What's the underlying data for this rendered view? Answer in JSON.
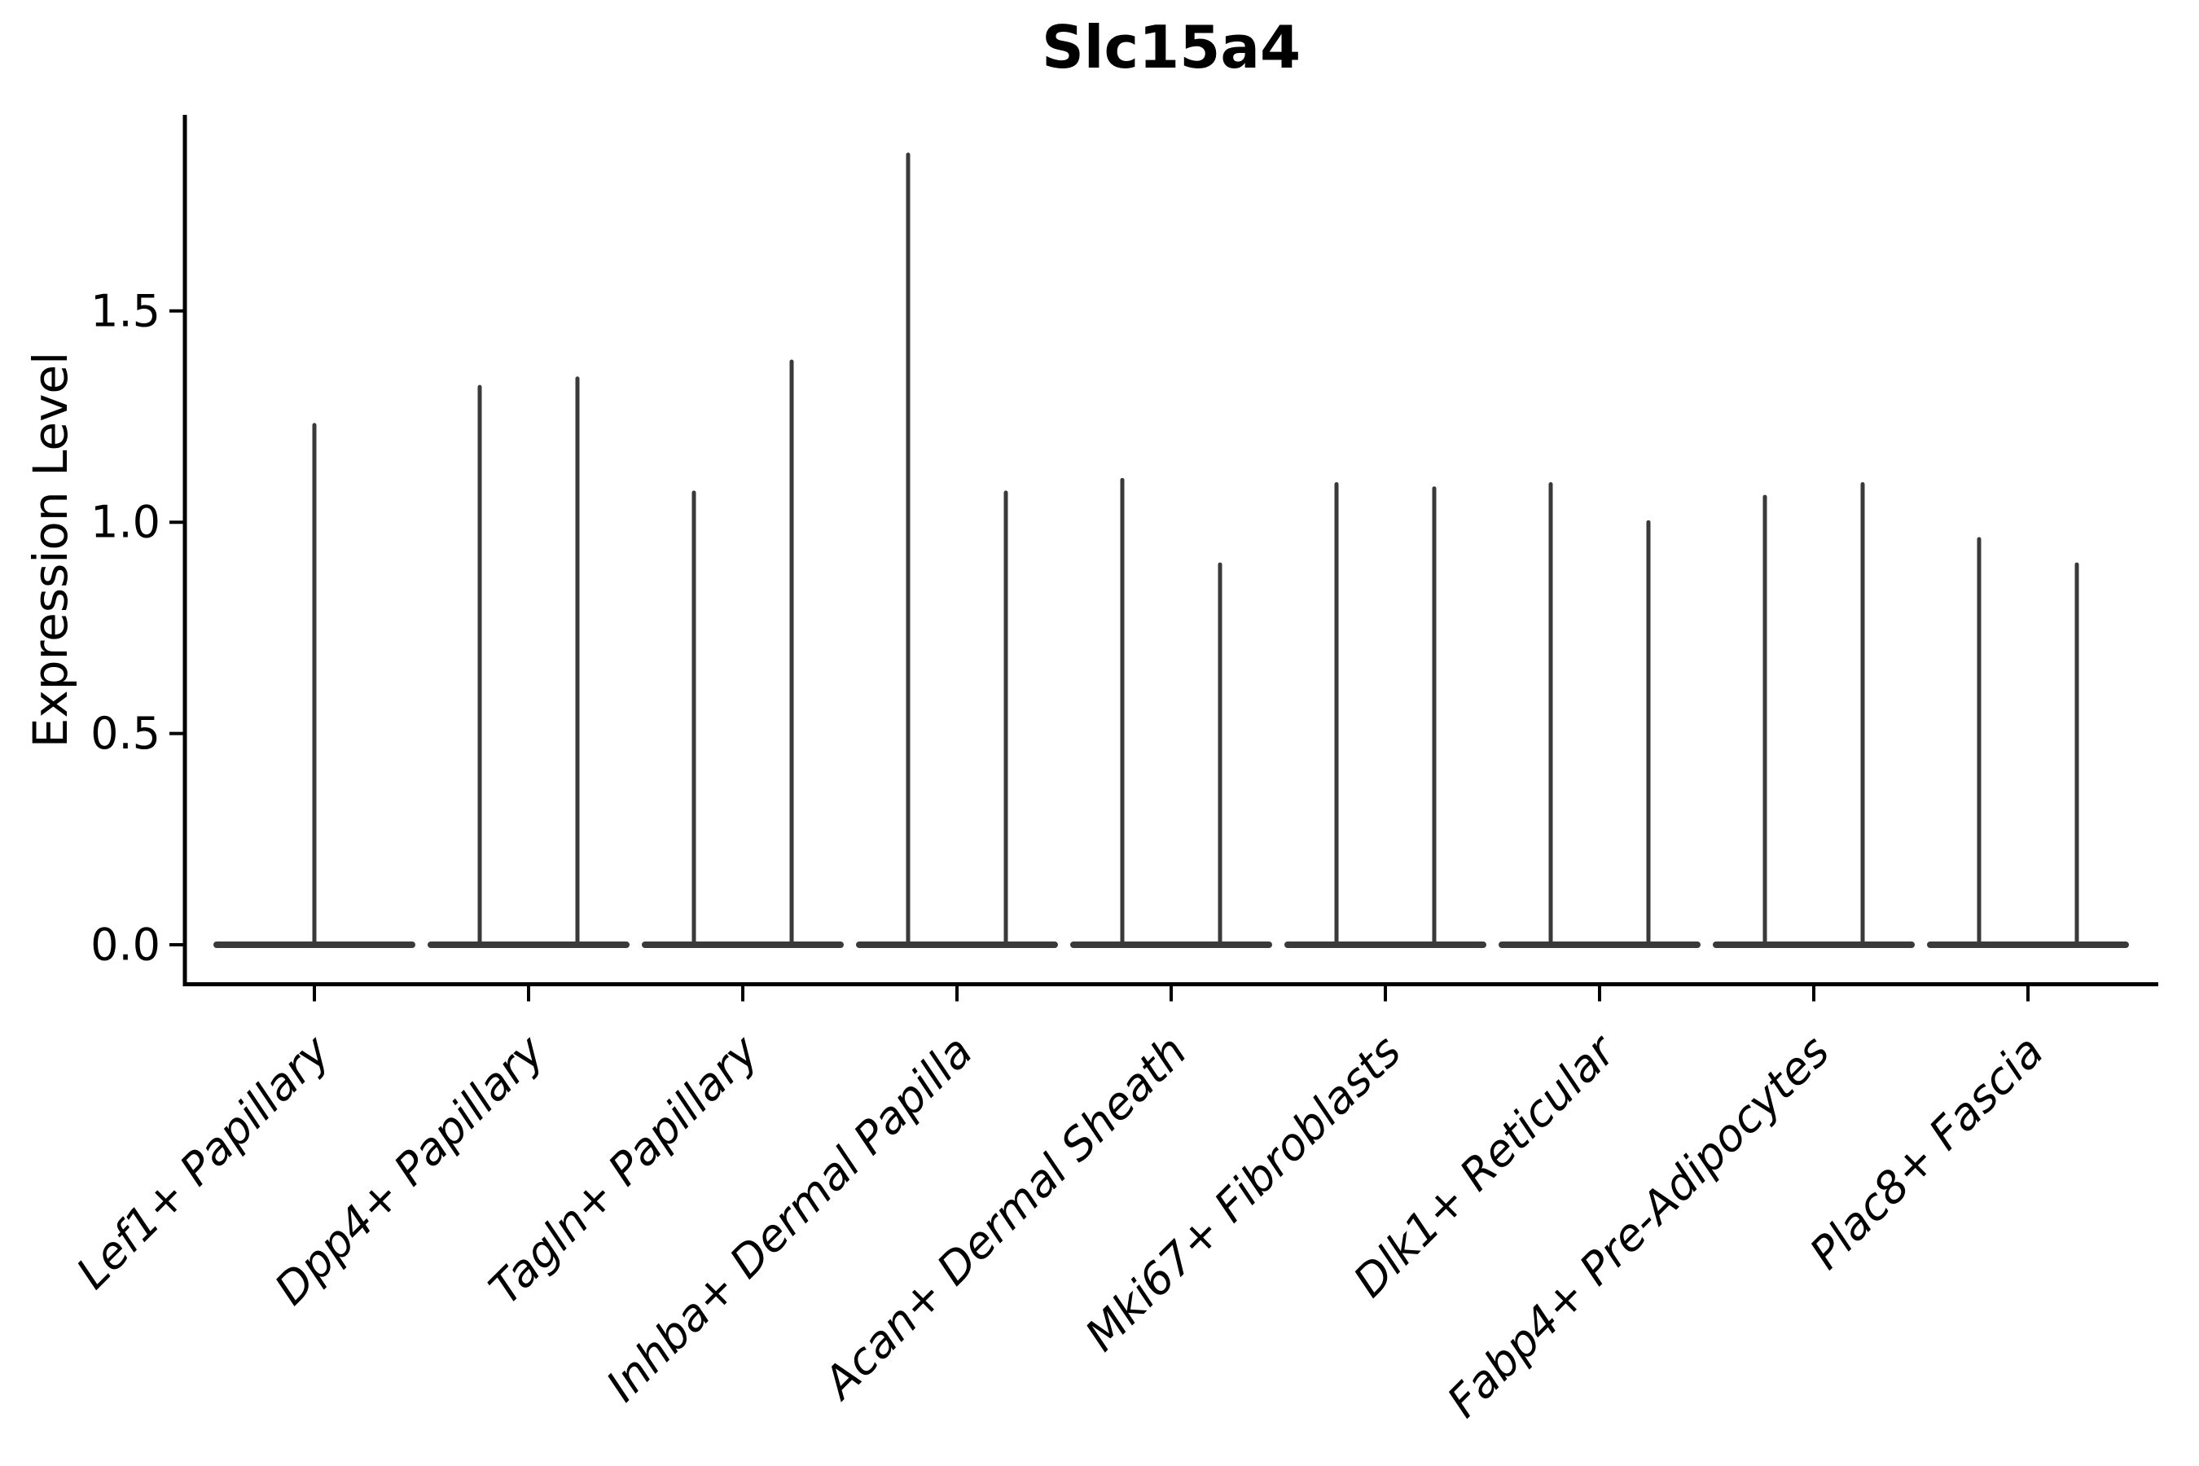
{
  "figure": {
    "title": "Slc15a4",
    "ylabel": "Expression Level",
    "background_color": "#ffffff",
    "axis_color": "#000000",
    "violin_color": "#3a3a3a"
  },
  "chart_data": {
    "type": "violin",
    "title": "Slc15a4",
    "xlabel": "",
    "ylabel": "Expression Level",
    "ylim": [
      -0.09,
      1.96
    ],
    "yticks": [
      0.0,
      0.5,
      1.0,
      1.5
    ],
    "ytick_labels": [
      "0.0",
      "0.5",
      "1.0",
      "1.5"
    ],
    "grid": false,
    "legend": "none",
    "spines": [
      "left",
      "bottom"
    ],
    "xtick_label_rotation_deg": 45,
    "xtick_label_style": "italic",
    "shape_note": "Needle violins: almost all density at expression 0 (wide flat base), thin vertical spike up to the max expression value; min is 0 for every violin.",
    "categories": [
      "Lef1+ Papillary",
      "Dpp4+ Papillary",
      "Tagln+ Papillary",
      "Inhba+ Dermal Papilla",
      "Acan+ Dermal Sheath",
      "Mki67+ Fibroblasts",
      "Dlk1+ Reticular",
      "Fabp4+ Pre-Adipocytes",
      "Plac8+ Fascia"
    ],
    "violins_per_category": [
      {
        "category": "Lef1+ Papillary",
        "spikes": [
          {
            "offset": 0,
            "min": 0,
            "max": 1.23
          }
        ]
      },
      {
        "category": "Dpp4+ Papillary",
        "spikes": [
          {
            "offset": -1,
            "min": 0,
            "max": 1.32
          },
          {
            "offset": 1,
            "min": 0,
            "max": 1.34
          }
        ]
      },
      {
        "category": "Tagln+ Papillary",
        "spikes": [
          {
            "offset": -1,
            "min": 0,
            "max": 1.07
          },
          {
            "offset": 1,
            "min": 0,
            "max": 1.38
          }
        ]
      },
      {
        "category": "Inhba+ Dermal Papilla",
        "spikes": [
          {
            "offset": -1,
            "min": 0,
            "max": 1.87
          },
          {
            "offset": 1,
            "min": 0,
            "max": 1.07
          }
        ]
      },
      {
        "category": "Acan+ Dermal Sheath",
        "spikes": [
          {
            "offset": -1,
            "min": 0,
            "max": 1.1
          },
          {
            "offset": 1,
            "min": 0,
            "max": 0.9
          }
        ]
      },
      {
        "category": "Mki67+ Fibroblasts",
        "spikes": [
          {
            "offset": -1,
            "min": 0,
            "max": 1.09
          },
          {
            "offset": 1,
            "min": 0,
            "max": 1.08
          }
        ]
      },
      {
        "category": "Dlk1+ Reticular",
        "spikes": [
          {
            "offset": -1,
            "min": 0,
            "max": 1.09
          },
          {
            "offset": 1,
            "min": 0,
            "max": 1.0
          }
        ]
      },
      {
        "category": "Fabp4+ Pre-Adipocytes",
        "spikes": [
          {
            "offset": -1,
            "min": 0,
            "max": 1.06
          },
          {
            "offset": 1,
            "min": 0,
            "max": 1.09
          }
        ]
      },
      {
        "category": "Plac8+ Fascia",
        "spikes": [
          {
            "offset": -1,
            "min": 0,
            "max": 0.96
          },
          {
            "offset": 1,
            "min": 0,
            "max": 0.9
          }
        ]
      }
    ]
  }
}
